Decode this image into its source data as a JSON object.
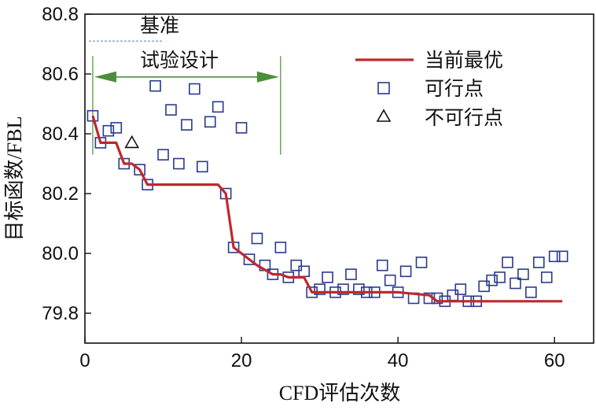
{
  "chart_data": {
    "type": "scatter",
    "xlabel": "CFD评估次数",
    "ylabel": "目标函数/FBL",
    "xlim": [
      0,
      65
    ],
    "ylim": [
      79.7,
      80.8
    ],
    "xticks": [
      0,
      20,
      40,
      60
    ],
    "xtick_labels": [
      "0",
      "20",
      "40",
      "60"
    ],
    "yticks": [
      79.8,
      80.0,
      80.2,
      80.4,
      80.6,
      80.8
    ],
    "ytick_labels": [
      "79.8",
      "80.0",
      "80.2",
      "80.4",
      "80.6",
      "80.8"
    ],
    "baseline": {
      "label": "基准",
      "y": 80.71,
      "x_range": [
        0.5,
        10
      ],
      "color": "#5b8ed6"
    },
    "doe": {
      "label": "试验设计",
      "x_start": 1,
      "x_end": 25,
      "arrow_y": 80.59,
      "color": "#4a8f3a"
    },
    "legend": [
      {
        "label": "当前最优",
        "marker": "line",
        "color": "#c0282d"
      },
      {
        "label": "可行点",
        "marker": "square",
        "color": "#2a3a8c"
      },
      {
        "label": "不可行点",
        "marker": "triangle",
        "color": "#111111"
      }
    ],
    "series": [
      {
        "name": "当前最优",
        "type": "line",
        "color": "#c0282d",
        "x": [
          1,
          2,
          4,
          5,
          6,
          7,
          8,
          9,
          17,
          18,
          19,
          20,
          21,
          22,
          24,
          25,
          26,
          28,
          29,
          35,
          40,
          44,
          45,
          61
        ],
        "y": [
          80.46,
          80.37,
          80.37,
          80.3,
          80.3,
          80.28,
          80.23,
          80.23,
          80.23,
          80.2,
          80.02,
          80.0,
          79.98,
          79.96,
          79.93,
          79.93,
          79.92,
          79.92,
          79.87,
          79.87,
          79.87,
          79.86,
          79.84,
          79.84
        ]
      },
      {
        "name": "可行点",
        "type": "scatter",
        "marker": "square",
        "color": "#2a3a8c",
        "x": [
          1,
          2,
          3,
          4,
          5,
          7,
          8,
          9,
          10,
          11,
          12,
          13,
          14,
          15,
          16,
          17,
          18,
          19,
          20,
          21,
          22,
          23,
          24,
          25,
          26,
          27,
          28,
          29,
          30,
          31,
          32,
          33,
          34,
          35,
          36,
          37,
          38,
          39,
          40,
          41,
          42,
          43,
          44,
          45,
          46,
          47,
          48,
          49,
          50,
          51,
          52,
          53,
          54,
          55,
          56,
          57,
          58,
          59,
          60,
          61
        ],
        "y": [
          80.46,
          80.37,
          80.41,
          80.42,
          80.3,
          80.28,
          80.23,
          80.56,
          80.33,
          80.48,
          80.3,
          80.43,
          80.55,
          80.29,
          80.44,
          80.49,
          80.2,
          80.02,
          80.42,
          79.98,
          80.05,
          79.96,
          79.93,
          80.02,
          79.92,
          79.96,
          79.94,
          79.87,
          79.88,
          79.92,
          79.87,
          79.88,
          79.93,
          79.88,
          79.87,
          79.87,
          79.96,
          79.91,
          79.87,
          79.94,
          79.85,
          79.97,
          79.85,
          79.85,
          79.84,
          79.86,
          79.88,
          79.84,
          79.84,
          79.89,
          79.91,
          79.92,
          79.97,
          79.9,
          79.93,
          79.87,
          79.97,
          79.92,
          79.99,
          79.99
        ]
      },
      {
        "name": "不可行点",
        "type": "scatter",
        "marker": "triangle",
        "color": "#111111",
        "x": [
          6
        ],
        "y": [
          80.37
        ]
      }
    ]
  }
}
